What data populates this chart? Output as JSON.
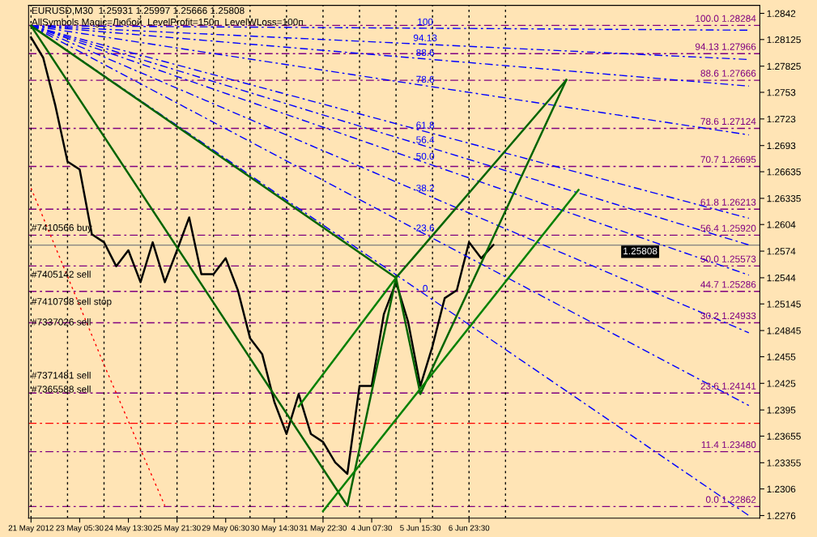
{
  "chart_data": {
    "type": "line",
    "title": "EURUSD,M30  1.25931 1.25997 1.25666 1.25808",
    "subtitle": "AllSymbols Magic=Любой  LevelProfit=150п  LevelWLoss=100п",
    "categories": [
      "21 May 2012",
      null,
      null,
      null,
      "23 May 05:30",
      null,
      null,
      null,
      "24 May 13:30",
      null,
      null,
      null,
      "25 May 21:30",
      null,
      null,
      null,
      "29 May 06:30",
      null,
      null,
      null,
      "30 May 14:30",
      null,
      null,
      null,
      "31 May 22:30",
      null,
      null,
      null,
      "4 Jun 07:30",
      null,
      null,
      null,
      "5 Jun 15:30",
      null,
      null,
      null,
      "6 Jun 23:30",
      null,
      null,
      null,
      null,
      null,
      null,
      null,
      null,
      null,
      null,
      null,
      null,
      null,
      null,
      null,
      null,
      null,
      null,
      null,
      null,
      null,
      null,
      null
    ],
    "ylim": [
      1.2273,
      1.2851
    ],
    "yticks": [
      1.2842,
      1.28125,
      1.27825,
      1.2753,
      1.2723,
      1.2693,
      1.26635,
      1.26335,
      1.2604,
      1.2574,
      1.2544,
      1.25145,
      1.24845,
      1.2455,
      1.2425,
      1.2395,
      1.23655,
      1.23355,
      1.2306,
      1.2276
    ],
    "grid": "x",
    "legend": false,
    "series": [
      {
        "color": "#000000",
        "line_style": "solid",
        "values": [
          1.2815,
          1.2792,
          1.2738,
          1.2675,
          1.2666,
          1.2593,
          1.2584,
          1.2557,
          1.2575,
          1.2539,
          1.2584,
          1.2539,
          1.2575,
          1.2612,
          1.2548,
          1.2548,
          1.2566,
          1.253,
          1.2476,
          1.2458,
          1.2404,
          1.2368,
          1.2413,
          1.2368,
          1.2359,
          1.2336,
          1.2323,
          1.2422,
          1.2422,
          1.2503,
          1.2539,
          1.2494,
          1.2422,
          1.2467,
          1.2521,
          1.253,
          1.2584,
          1.2566,
          1.2581,
          null,
          null,
          null,
          null,
          null,
          null,
          null,
          null,
          null,
          null,
          null,
          null,
          null,
          null,
          null,
          null,
          null,
          null,
          null,
          null,
          null
        ]
      },
      {
        "name": "100",
        "color": "#0000ff",
        "line_style": "dashed",
        "values": [
          1.2828,
          null,
          null,
          null,
          null,
          null,
          null,
          null,
          null,
          null,
          null,
          null,
          null,
          null,
          null,
          null,
          null,
          null,
          null,
          null,
          null,
          null,
          null,
          null,
          null,
          null,
          null,
          null,
          null,
          null,
          null,
          null,
          null,
          null,
          null,
          null,
          null,
          null,
          null,
          null,
          null,
          null,
          null,
          null,
          null,
          null,
          null,
          null,
          null,
          null,
          null,
          null,
          null,
          null,
          null,
          null,
          null,
          null,
          null,
          1.2823
        ]
      },
      {
        "name": "94.13",
        "color": "#0000ff",
        "line_style": "dashed",
        "values": [
          1.2828,
          null,
          null,
          null,
          null,
          null,
          null,
          null,
          null,
          null,
          null,
          null,
          null,
          null,
          null,
          null,
          null,
          null,
          null,
          null,
          null,
          null,
          null,
          null,
          null,
          null,
          null,
          null,
          null,
          null,
          null,
          null,
          null,
          null,
          null,
          null,
          null,
          null,
          null,
          null,
          null,
          null,
          null,
          null,
          null,
          null,
          null,
          null,
          null,
          null,
          null,
          null,
          null,
          null,
          null,
          null,
          null,
          null,
          null,
          1.279
        ]
      },
      {
        "name": "88.6",
        "color": "#0000ff",
        "line_style": "dashed",
        "values": [
          1.2828,
          null,
          null,
          null,
          null,
          null,
          null,
          null,
          null,
          null,
          null,
          null,
          null,
          null,
          null,
          null,
          null,
          null,
          null,
          null,
          null,
          null,
          null,
          null,
          null,
          null,
          null,
          null,
          null,
          null,
          null,
          null,
          null,
          null,
          null,
          null,
          null,
          null,
          null,
          null,
          null,
          null,
          null,
          null,
          null,
          null,
          null,
          null,
          null,
          null,
          null,
          null,
          null,
          null,
          null,
          null,
          null,
          null,
          null,
          1.276
        ]
      },
      {
        "name": "78.6",
        "color": "#0000ff",
        "line_style": "dashed",
        "values": [
          1.2828,
          null,
          null,
          null,
          null,
          null,
          null,
          null,
          null,
          null,
          null,
          null,
          null,
          null,
          null,
          null,
          null,
          null,
          null,
          null,
          null,
          null,
          null,
          null,
          null,
          null,
          null,
          null,
          null,
          null,
          null,
          null,
          null,
          null,
          null,
          null,
          null,
          null,
          null,
          null,
          null,
          null,
          null,
          null,
          null,
          null,
          null,
          null,
          null,
          null,
          null,
          null,
          null,
          null,
          null,
          null,
          null,
          null,
          null,
          1.2705
        ]
      },
      {
        "name": "61.8",
        "color": "#0000ff",
        "line_style": "dashed",
        "values": [
          1.2828,
          null,
          null,
          null,
          null,
          null,
          null,
          null,
          null,
          null,
          null,
          null,
          null,
          null,
          null,
          null,
          null,
          null,
          null,
          null,
          null,
          null,
          null,
          null,
          null,
          null,
          null,
          null,
          null,
          null,
          null,
          null,
          null,
          null,
          null,
          null,
          null,
          null,
          null,
          null,
          null,
          null,
          null,
          null,
          null,
          null,
          null,
          null,
          null,
          null,
          null,
          null,
          null,
          null,
          null,
          null,
          null,
          null,
          null,
          1.2611
        ]
      },
      {
        "name": "56.4",
        "color": "#0000ff",
        "line_style": "dashed",
        "values": [
          1.2828,
          null,
          null,
          null,
          null,
          null,
          null,
          null,
          null,
          null,
          null,
          null,
          null,
          null,
          null,
          null,
          null,
          null,
          null,
          null,
          null,
          null,
          null,
          null,
          null,
          null,
          null,
          null,
          null,
          null,
          null,
          null,
          null,
          null,
          null,
          null,
          null,
          null,
          null,
          null,
          null,
          null,
          null,
          null,
          null,
          null,
          null,
          null,
          null,
          null,
          null,
          null,
          null,
          null,
          null,
          null,
          null,
          null,
          null,
          1.2581
        ]
      },
      {
        "name": "50.0",
        "color": "#0000ff",
        "line_style": "dashed",
        "values": [
          1.2828,
          null,
          null,
          null,
          null,
          null,
          null,
          null,
          null,
          null,
          null,
          null,
          null,
          null,
          null,
          null,
          null,
          null,
          null,
          null,
          null,
          null,
          null,
          null,
          null,
          null,
          null,
          null,
          null,
          null,
          null,
          null,
          null,
          null,
          null,
          null,
          null,
          null,
          null,
          null,
          null,
          null,
          null,
          null,
          null,
          null,
          null,
          null,
          null,
          null,
          null,
          null,
          null,
          null,
          null,
          null,
          null,
          null,
          null,
          1.2547
        ]
      },
      {
        "name": "38.2",
        "color": "#0000ff",
        "line_style": "dashed",
        "values": [
          1.2828,
          null,
          null,
          null,
          null,
          null,
          null,
          null,
          null,
          null,
          null,
          null,
          null,
          null,
          null,
          null,
          null,
          null,
          null,
          null,
          null,
          null,
          null,
          null,
          null,
          null,
          null,
          null,
          null,
          null,
          null,
          null,
          null,
          null,
          null,
          null,
          null,
          null,
          null,
          null,
          null,
          null,
          null,
          null,
          null,
          null,
          null,
          null,
          null,
          null,
          null,
          null,
          null,
          null,
          null,
          null,
          null,
          null,
          null,
          1.2482
        ]
      },
      {
        "name": "23.6",
        "color": "#0000ff",
        "line_style": "dashed",
        "values": [
          1.2828,
          null,
          null,
          null,
          null,
          null,
          null,
          null,
          null,
          null,
          null,
          null,
          null,
          null,
          null,
          null,
          null,
          null,
          null,
          null,
          null,
          null,
          null,
          null,
          null,
          null,
          null,
          null,
          null,
          null,
          null,
          null,
          null,
          null,
          null,
          null,
          null,
          null,
          null,
          null,
          null,
          null,
          null,
          null,
          null,
          null,
          null,
          null,
          null,
          null,
          null,
          null,
          null,
          null,
          null,
          null,
          null,
          null,
          null,
          1.24
        ]
      },
      {
        "name": "0",
        "color": "#0000ff",
        "line_style": "dashed",
        "values": [
          1.2828,
          null,
          null,
          null,
          null,
          null,
          null,
          null,
          null,
          null,
          null,
          null,
          null,
          null,
          null,
          null,
          null,
          null,
          null,
          null,
          null,
          null,
          null,
          null,
          null,
          null,
          null,
          null,
          null,
          null,
          null,
          null,
          null,
          null,
          null,
          null,
          null,
          null,
          null,
          null,
          null,
          null,
          null,
          null,
          null,
          null,
          null,
          null,
          null,
          null,
          null,
          null,
          null,
          null,
          null,
          null,
          null,
          null,
          null,
          1.2276
        ]
      },
      {
        "color": "#006400",
        "line_style": "solid",
        "values": [
          1.2828,
          null,
          null,
          null,
          null,
          null,
          null,
          null,
          null,
          null,
          null,
          null,
          null,
          null,
          null,
          null,
          null,
          null,
          null,
          null,
          null,
          null,
          null,
          null,
          null,
          null,
          1.2287,
          null,
          null,
          null,
          1.2544,
          null,
          1.2413,
          null,
          null,
          null,
          null,
          null,
          null,
          null,
          null,
          null,
          null,
          null,
          1.2767,
          null,
          null,
          null,
          null,
          null,
          null,
          null,
          null,
          null,
          null,
          null,
          null,
          null,
          null,
          null
        ]
      },
      {
        "color": "#006400",
        "line_style": "solid",
        "values": [
          1.2828,
          null,
          null,
          null,
          null,
          null,
          null,
          null,
          null,
          null,
          null,
          null,
          null,
          null,
          null,
          null,
          null,
          null,
          null,
          null,
          null,
          null,
          null,
          null,
          null,
          null,
          null,
          null,
          null,
          null,
          1.2544,
          null,
          null,
          null,
          null,
          null,
          null,
          null,
          null,
          null,
          null,
          null,
          null,
          null,
          1.2767,
          null,
          null,
          null,
          null,
          null,
          null,
          null,
          null,
          null,
          null,
          null,
          null,
          null,
          null,
          null
        ]
      },
      {
        "color": "#008000",
        "line_style": "solid",
        "values": [
          null,
          null,
          null,
          null,
          null,
          null,
          null,
          null,
          null,
          null,
          null,
          null,
          null,
          null,
          null,
          null,
          null,
          null,
          null,
          null,
          null,
          null,
          null,
          null,
          1.2281,
          null,
          null,
          null,
          null,
          null,
          null,
          null,
          null,
          null,
          null,
          null,
          null,
          null,
          null,
          null,
          null,
          null,
          null,
          null,
          null,
          1.2643,
          null,
          null,
          null,
          null,
          null,
          null,
          null,
          null,
          null,
          null,
          null,
          null,
          null,
          null
        ]
      },
      {
        "color": "#008000",
        "line_style": "solid",
        "values": [
          null,
          null,
          null,
          null,
          null,
          null,
          null,
          null,
          null,
          null,
          null,
          null,
          null,
          null,
          null,
          null,
          null,
          null,
          null,
          null,
          null,
          null,
          1.2399,
          null,
          null,
          null,
          null,
          null,
          null,
          null,
          1.2544,
          null,
          null,
          null,
          null,
          null,
          null,
          null,
          null,
          null,
          null,
          null,
          null,
          null,
          null,
          null,
          null,
          null,
          null,
          null,
          null,
          null,
          null,
          null,
          null,
          null,
          null,
          null,
          null,
          null
        ]
      },
      {
        "color": "#ff0000",
        "line_style": "dotted",
        "values": [
          1.2645,
          null,
          null,
          null,
          null,
          null,
          1.2446,
          null,
          null,
          null,
          null,
          1.2287,
          null,
          null,
          null,
          null,
          null,
          null,
          null,
          null,
          null,
          null,
          null,
          null,
          null,
          null,
          null,
          null,
          null,
          null,
          null,
          null,
          null,
          null,
          null,
          null,
          null,
          null,
          null,
          null,
          null,
          null,
          null,
          null,
          null,
          null,
          null,
          null,
          null,
          null,
          null,
          null,
          null,
          null,
          null,
          null,
          null,
          null,
          null,
          null
        ]
      }
    ],
    "ref_lines": [
      {
        "axis": "y",
        "value": 1.28284,
        "label": "100.0 1.28284",
        "color": "#800080",
        "line_style": "dashed"
      },
      {
        "axis": "y",
        "value": 1.27966,
        "label": "94.13 1.27966",
        "color": "#800080",
        "line_style": "dashed"
      },
      {
        "axis": "y",
        "value": 1.27666,
        "label": "88.6 1.27666",
        "color": "#800080",
        "line_style": "dashed"
      },
      {
        "axis": "y",
        "value": 1.27124,
        "label": "78.6 1.27124",
        "color": "#800080",
        "line_style": "dashed"
      },
      {
        "axis": "y",
        "value": 1.26695,
        "label": "70.7 1.26695",
        "color": "#800080",
        "line_style": "dashed"
      },
      {
        "axis": "y",
        "value": 1.26213,
        "label": "61.8 1.26213",
        "color": "#800080",
        "line_style": "dashed"
      },
      {
        "axis": "y",
        "value": 1.2592,
        "label": "56.4 1.25920",
        "color": "#800080",
        "line_style": "dashed"
      },
      {
        "axis": "y",
        "value": 1.25573,
        "label": "50.0 1.25573",
        "color": "#800080",
        "line_style": "dashed"
      },
      {
        "axis": "y",
        "value": 1.25286,
        "label": "44.7 1.25286",
        "color": "#800080",
        "line_style": "dashed"
      },
      {
        "axis": "y",
        "value": 1.24933,
        "label": "30.2 1.24933",
        "color": "#800080",
        "line_style": "dashed"
      },
      {
        "axis": "y",
        "value": 1.24141,
        "label": "23.6 1.24141",
        "color": "#800080",
        "line_style": "dashed"
      },
      {
        "axis": "y",
        "value": 1.2348,
        "label": "11.4 1.23480",
        "color": "#800080",
        "line_style": "dashed"
      },
      {
        "axis": "y",
        "value": 1.22862,
        "label": "0.0 1.22862",
        "color": "#800080",
        "line_style": "dashed"
      },
      {
        "axis": "y",
        "value": 1.238,
        "color": "#ff0000",
        "line_style": "dashed"
      },
      {
        "axis": "y",
        "value": 1.25808,
        "label": "1.25808",
        "color": "#808080",
        "line_style": "solid"
      }
    ],
    "annotations": [
      "#7410566 buy",
      "#7405142 sell",
      "#7410798 sell stop",
      "#7337026 sell",
      "#7371481 sell",
      "#7365588 sell"
    ]
  }
}
